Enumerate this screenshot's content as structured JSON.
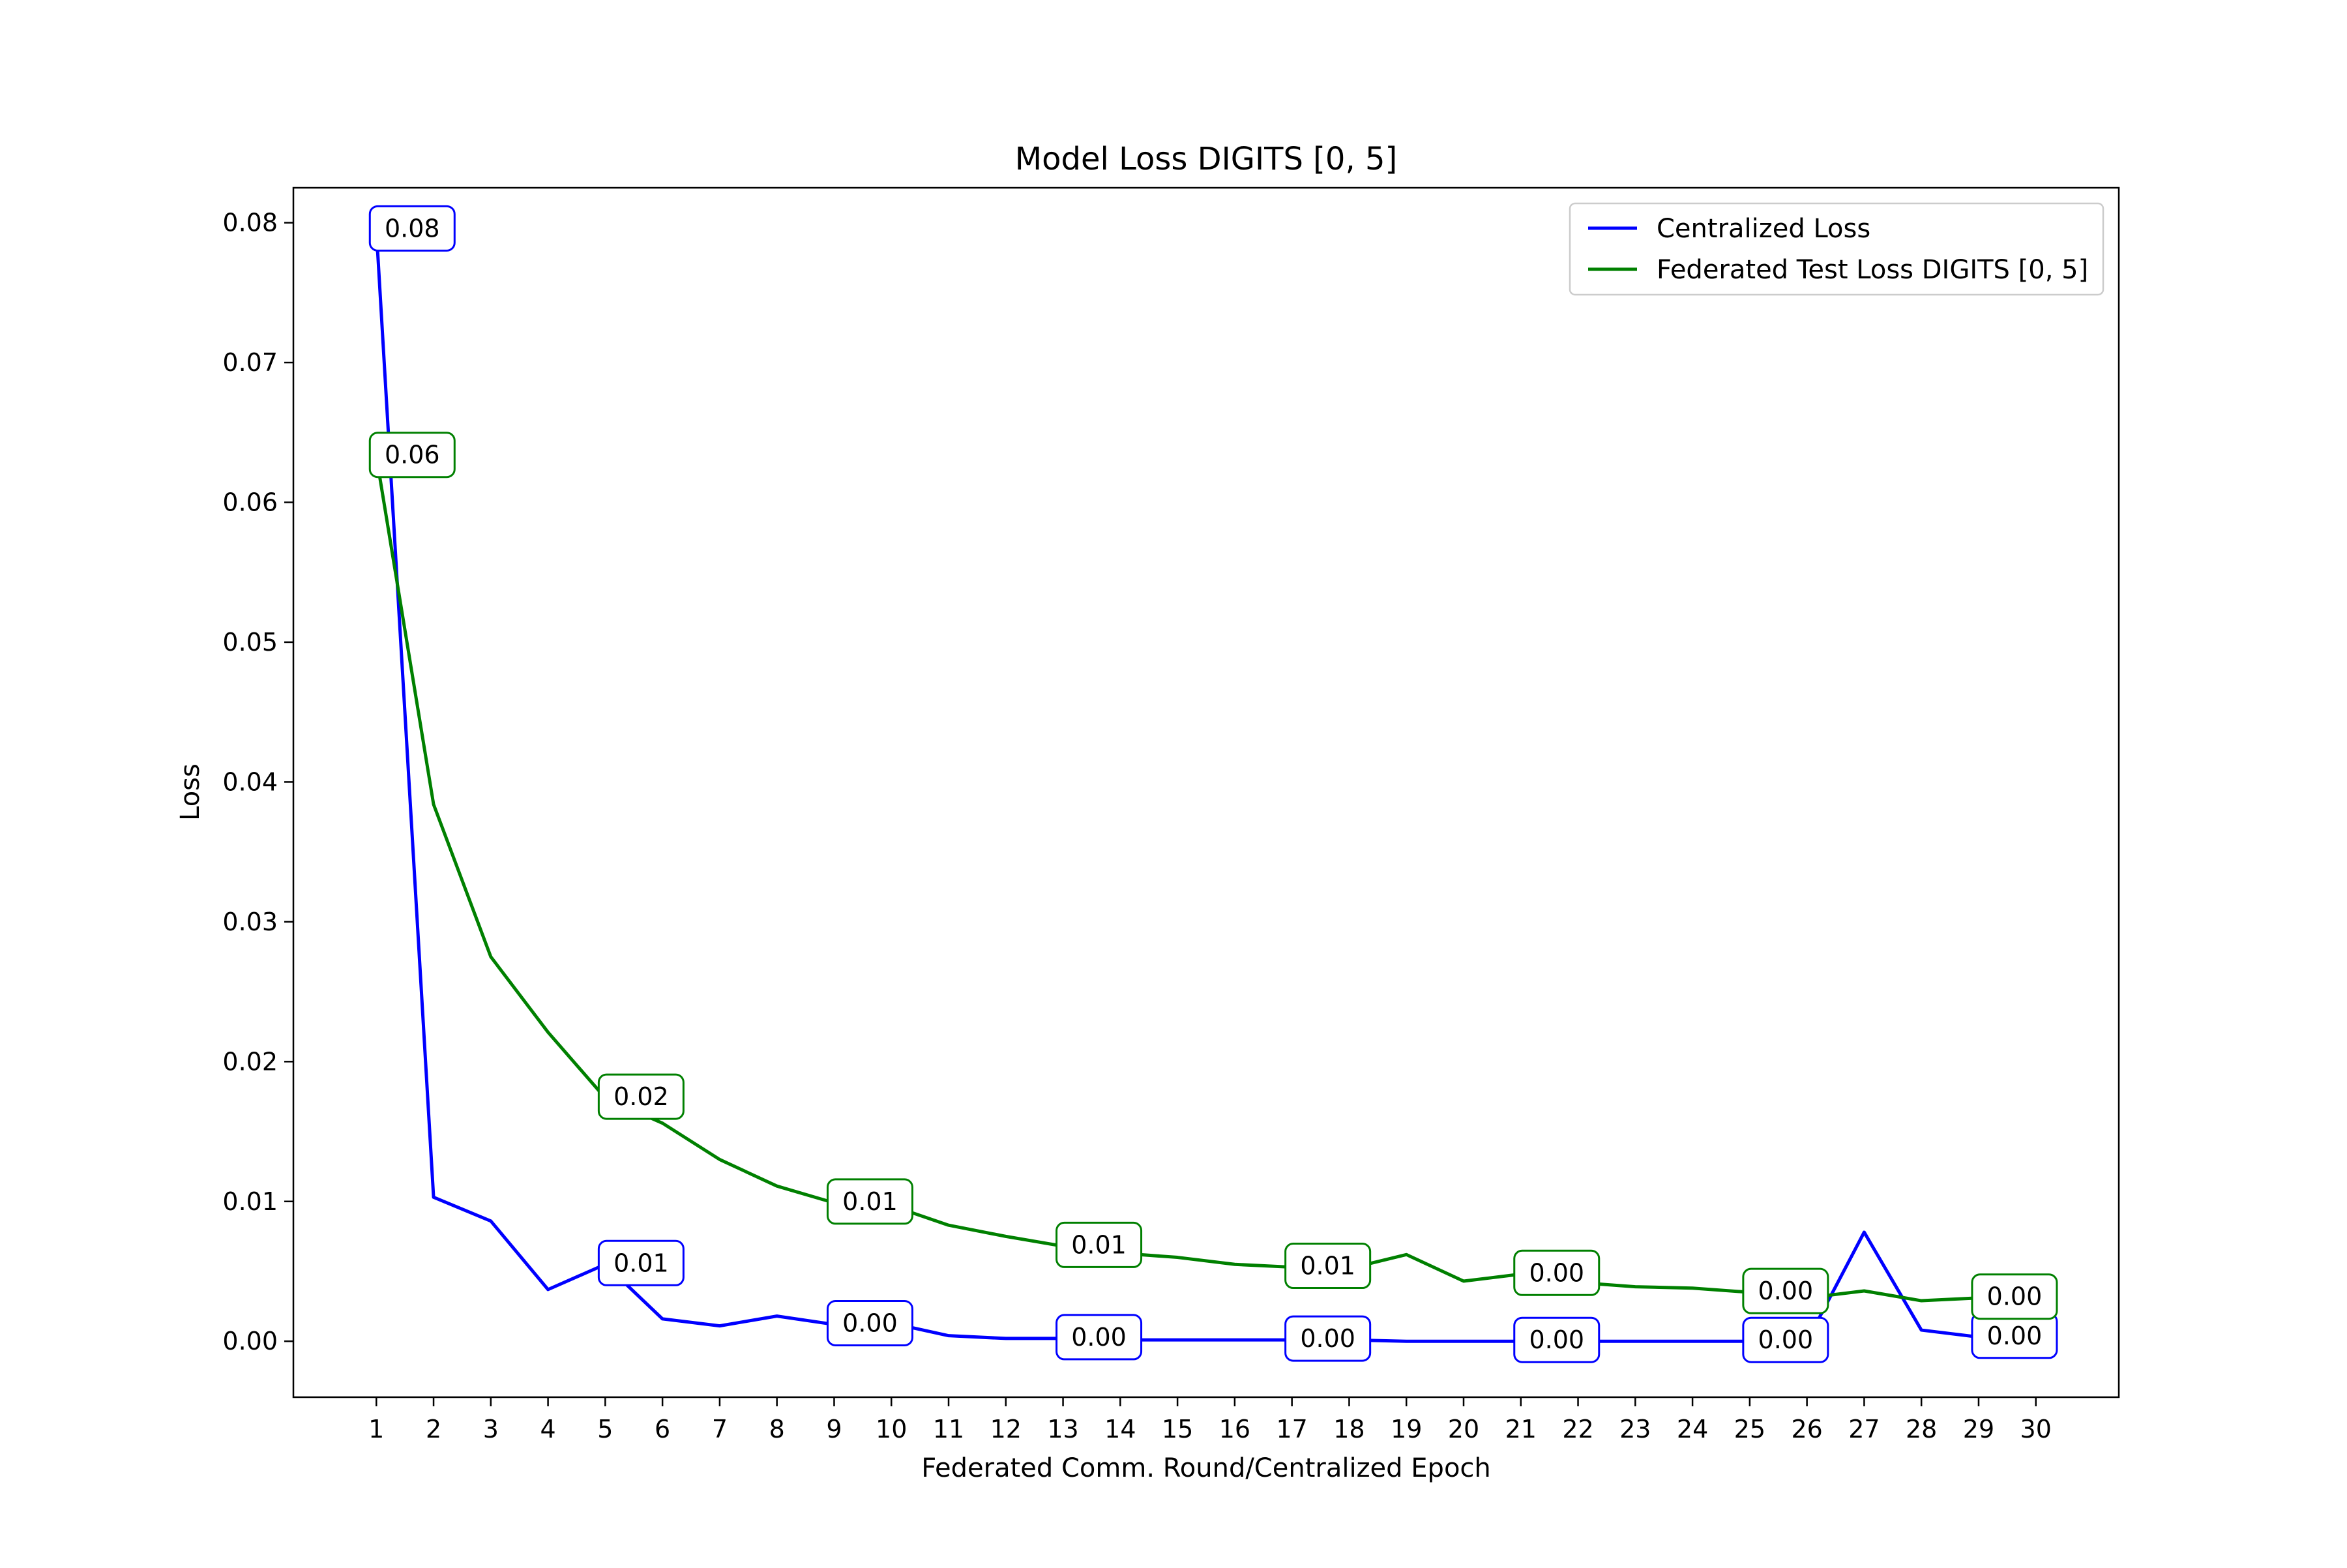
{
  "chart_data": {
    "type": "line",
    "title": "Model Loss DIGITS [0, 5]",
    "xlabel": "Federated Comm. Round/Centralized Epoch",
    "ylabel": "Loss",
    "xlim": [
      -0.45,
      31.45
    ],
    "ylim": [
      -0.004,
      0.0825
    ],
    "x_ticks": [
      1,
      2,
      3,
      4,
      5,
      6,
      7,
      8,
      9,
      10,
      11,
      12,
      13,
      14,
      15,
      16,
      17,
      18,
      19,
      20,
      21,
      22,
      23,
      24,
      25,
      26,
      27,
      28,
      29,
      30
    ],
    "y_ticks": [
      "0.00",
      "0.01",
      "0.02",
      "0.03",
      "0.04",
      "0.05",
      "0.06",
      "0.07",
      "0.08"
    ],
    "grid": false,
    "legend_position": "top-right",
    "x": [
      1,
      2,
      3,
      4,
      5,
      6,
      7,
      8,
      9,
      10,
      11,
      12,
      13,
      14,
      15,
      16,
      17,
      18,
      19,
      20,
      21,
      22,
      23,
      24,
      25,
      26,
      27,
      28,
      29,
      30
    ],
    "series": [
      {
        "name": "Centralized Loss",
        "color": "#0000ff",
        "values": [
          0.0795,
          0.0103,
          0.0086,
          0.0037,
          0.0055,
          0.0016,
          0.0011,
          0.0018,
          0.0012,
          0.0013,
          0.0004,
          0.0002,
          0.0002,
          0.0001,
          0.0001,
          0.0001,
          0.0001,
          0.0001,
          0.0,
          0.0,
          0.0,
          0.0,
          0.0,
          0.0,
          0.0,
          0.0,
          0.0078,
          0.0008,
          0.0003,
          0.0007
        ],
        "labels": [
          {
            "x": 1,
            "y": 0.0795,
            "text": "0.08"
          },
          {
            "x": 5,
            "y": 0.0055,
            "text": "0.01"
          },
          {
            "x": 9,
            "y": 0.0012,
            "text": "0.00"
          },
          {
            "x": 13,
            "y": 0.0002,
            "text": "0.00"
          },
          {
            "x": 17,
            "y": 0.0001,
            "text": "0.00"
          },
          {
            "x": 21,
            "y": 0.0,
            "text": "0.00"
          },
          {
            "x": 25,
            "y": 0.0,
            "text": "0.00"
          },
          {
            "x": 29,
            "y": 0.0003,
            "text": "0.00"
          }
        ]
      },
      {
        "name": "Federated Test Loss DIGITS [0, 5]",
        "color": "#008000",
        "values": [
          0.0633,
          0.0384,
          0.0275,
          0.0221,
          0.0174,
          0.0156,
          0.013,
          0.0111,
          0.0099,
          0.0097,
          0.0083,
          0.0075,
          0.0068,
          0.0063,
          0.006,
          0.0055,
          0.0053,
          0.0052,
          0.0062,
          0.0043,
          0.0048,
          0.0042,
          0.0039,
          0.0038,
          0.0035,
          0.0031,
          0.0036,
          0.0029,
          0.0031,
          0.003
        ],
        "labels": [
          {
            "x": 1,
            "y": 0.0633,
            "text": "0.06"
          },
          {
            "x": 5,
            "y": 0.0174,
            "text": "0.02"
          },
          {
            "x": 9,
            "y": 0.0099,
            "text": "0.01"
          },
          {
            "x": 13,
            "y": 0.0068,
            "text": "0.01"
          },
          {
            "x": 17,
            "y": 0.0053,
            "text": "0.01"
          },
          {
            "x": 21,
            "y": 0.0048,
            "text": "0.00"
          },
          {
            "x": 25,
            "y": 0.0035,
            "text": "0.00"
          },
          {
            "x": 29,
            "y": 0.0031,
            "text": "0.00"
          }
        ]
      }
    ]
  }
}
